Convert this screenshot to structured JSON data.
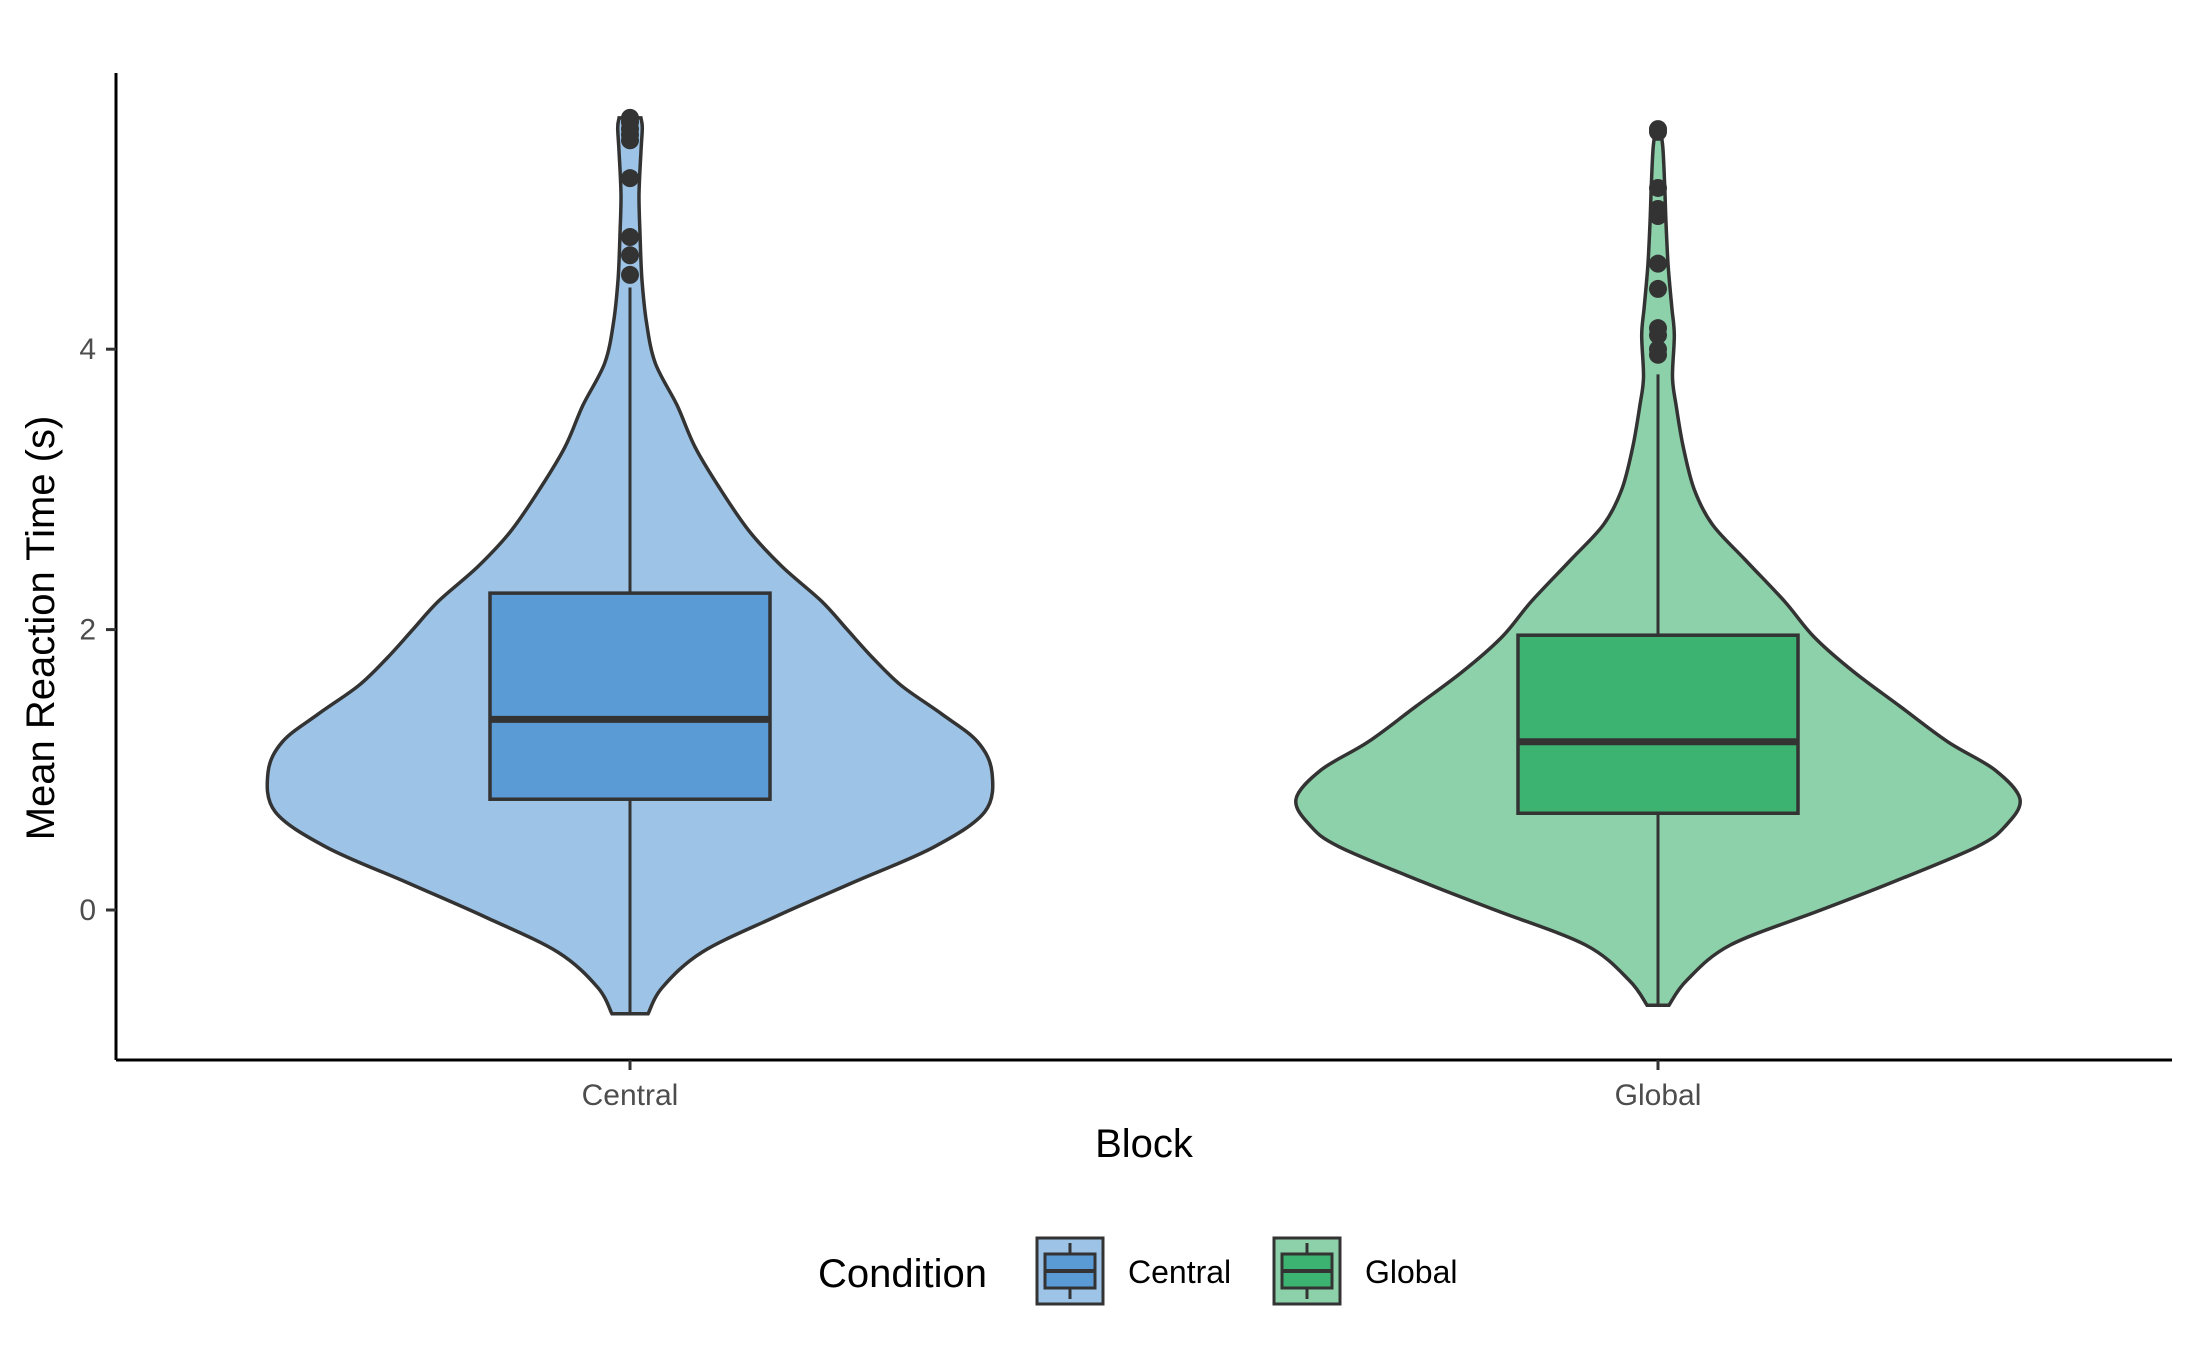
{
  "chart_data": {
    "type": "violin",
    "xlabel": "Block",
    "ylabel": "Mean Reaction Time (s)",
    "ylim": [
      -1.07,
      5.97
    ],
    "y_ticks": [
      0,
      2,
      4
    ],
    "y_tick_labels": [
      "0",
      "2",
      "4"
    ],
    "categories": [
      "Central",
      "Global"
    ],
    "grid": false,
    "legend": {
      "title": "Condition",
      "position": "bottom",
      "entries": [
        "Central",
        "Global"
      ]
    },
    "series": [
      {
        "category": "Central",
        "fill_violin": "#9dc3e6",
        "fill_box": "#5b9bd5",
        "box": {
          "q1": 0.79,
          "median": 1.36,
          "q3": 2.26,
          "whisker_low": -0.74,
          "whisker_high": 4.44
        },
        "outliers": [
          4.53,
          4.67,
          4.8,
          5.22,
          5.49,
          5.53,
          5.57,
          5.62,
          5.65
        ],
        "density": [
          [
            -0.74,
            0.05
          ],
          [
            -0.55,
            0.09
          ],
          [
            -0.3,
            0.2
          ],
          [
            -0.05,
            0.4
          ],
          [
            0.2,
            0.62
          ],
          [
            0.45,
            0.84
          ],
          [
            0.7,
            0.98
          ],
          [
            0.98,
            1.0
          ],
          [
            1.2,
            0.96
          ],
          [
            1.4,
            0.86
          ],
          [
            1.6,
            0.75
          ],
          [
            1.8,
            0.67
          ],
          [
            2.0,
            0.6
          ],
          [
            2.2,
            0.53
          ],
          [
            2.45,
            0.42
          ],
          [
            2.7,
            0.33
          ],
          [
            3.0,
            0.25
          ],
          [
            3.3,
            0.18
          ],
          [
            3.6,
            0.13
          ],
          [
            3.9,
            0.07
          ],
          [
            4.2,
            0.045
          ],
          [
            4.5,
            0.033
          ],
          [
            4.8,
            0.028
          ],
          [
            5.1,
            0.025
          ],
          [
            5.4,
            0.03
          ],
          [
            5.58,
            0.034
          ],
          [
            5.65,
            0.03
          ]
        ]
      },
      {
        "category": "Global",
        "fill_violin": "#8dd1aa",
        "fill_box": "#3cb371",
        "box": {
          "q1": 0.69,
          "median": 1.2,
          "q3": 1.96,
          "whisker_low": -0.68,
          "whisker_high": 3.82
        },
        "outliers": [
          3.96,
          4.0,
          4.1,
          4.15,
          4.43,
          4.61,
          4.95,
          5.0,
          5.15,
          5.55,
          5.57
        ],
        "density": [
          [
            -0.68,
            0.03
          ],
          [
            -0.5,
            0.08
          ],
          [
            -0.25,
            0.2
          ],
          [
            0.0,
            0.45
          ],
          [
            0.2,
            0.65
          ],
          [
            0.45,
            0.88
          ],
          [
            0.6,
            0.96
          ],
          [
            0.79,
            1.0
          ],
          [
            1.0,
            0.93
          ],
          [
            1.2,
            0.8
          ],
          [
            1.45,
            0.67
          ],
          [
            1.7,
            0.54
          ],
          [
            1.95,
            0.43
          ],
          [
            2.2,
            0.35
          ],
          [
            2.5,
            0.24
          ],
          [
            2.75,
            0.15
          ],
          [
            3.0,
            0.1
          ],
          [
            3.3,
            0.07
          ],
          [
            3.6,
            0.05
          ],
          [
            3.8,
            0.04
          ],
          [
            4.1,
            0.045
          ],
          [
            4.3,
            0.038
          ],
          [
            4.6,
            0.028
          ],
          [
            4.9,
            0.022
          ],
          [
            5.2,
            0.018
          ],
          [
            5.45,
            0.013
          ],
          [
            5.58,
            0.005
          ]
        ]
      }
    ]
  }
}
